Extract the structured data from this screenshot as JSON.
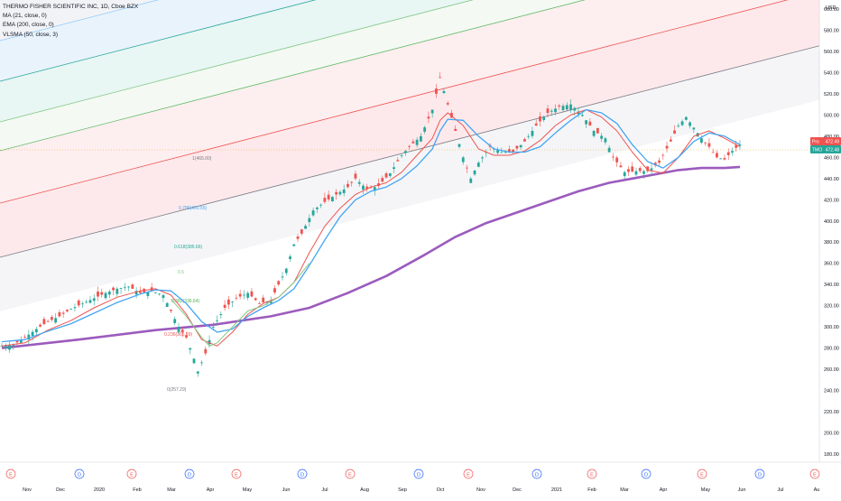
{
  "header": {
    "symbol_line": "THERMO FISHER SCIENTIFIC INC, 1D, Cboe BZX",
    "indicators": [
      "MA (21, close, 0)",
      "EMA (200, close, 0)",
      "VLSMA (50, close, 3)"
    ]
  },
  "price_axis": {
    "currency": "USD",
    "ticks": [
      "600.00",
      "580.00",
      "560.00",
      "540.00",
      "520.00",
      "500.00",
      "480.00",
      "460.00",
      "440.00",
      "420.00",
      "400.00",
      "380.00",
      "360.00",
      "340.00",
      "320.00",
      "300.00",
      "280.00",
      "260.00",
      "240.00",
      "220.00",
      "200.00",
      "180.00"
    ]
  },
  "time_axis": {
    "labels": [
      "Nov",
      "Dec",
      "2020",
      "Feb",
      "Mar",
      "Apr",
      "May",
      "Jun",
      "Jul",
      "Aug",
      "Sep",
      "Oct",
      "Nov",
      "Dec",
      "2021",
      "Feb",
      "Mar",
      "Apr",
      "May",
      "Jun",
      "Jul",
      "Au"
    ]
  },
  "event_markers": [
    "E",
    "D",
    "E",
    "D",
    "E",
    "D",
    "E",
    "D",
    "E",
    "D",
    "E",
    "D",
    "E",
    "D",
    "E",
    "D",
    "E",
    "D",
    "E"
  ],
  "price_tags": [
    {
      "label": "Pro",
      "value": "472.49",
      "color": "#ef5350"
    },
    {
      "label": "TMO",
      "value": "472.48",
      "color": "#26a69a"
    }
  ],
  "fib_levels": [
    {
      "label": "1(465.00)",
      "color": "#787b86"
    },
    {
      "label": "0.786(420.55)",
      "color": "#42a5f5"
    },
    {
      "label": "0.618(385.66)",
      "color": "#26a69a"
    },
    {
      "label": "0.5",
      "color": "#81c784"
    },
    {
      "label": "0.382(336.64)",
      "color": "#4caf50"
    },
    {
      "label": "0.236(306.39)",
      "color": "#ef5350"
    },
    {
      "label": "0(257.29)",
      "color": "#787b86"
    }
  ],
  "chart_data": {
    "type": "line",
    "title": "THERMO FISHER SCIENTIFIC INC, 1D, Cboe BZX",
    "xlabel": "",
    "ylabel": "USD",
    "ylim": [
      180,
      600
    ],
    "x_labels": [
      "Nov",
      "Dec",
      "2020",
      "Feb",
      "Mar",
      "Apr",
      "May",
      "Jun",
      "Jul",
      "Aug",
      "Sep",
      "Oct",
      "Nov",
      "Dec",
      "2021",
      "Feb",
      "Mar",
      "Apr",
      "May",
      "Jun",
      "Jul",
      "Au"
    ],
    "price_path": [
      [
        0,
        282
      ],
      [
        3,
        283
      ],
      [
        6,
        290
      ],
      [
        9,
        298
      ],
      [
        12,
        305
      ],
      [
        15,
        310
      ],
      [
        18,
        317
      ],
      [
        21,
        322
      ],
      [
        24,
        327
      ],
      [
        27,
        332
      ],
      [
        30,
        336
      ],
      [
        33,
        338
      ],
      [
        36,
        332
      ],
      [
        39,
        334
      ],
      [
        42,
        330
      ],
      [
        44,
        315
      ],
      [
        46,
        300
      ],
      [
        48,
        290
      ],
      [
        50,
        270
      ],
      [
        51,
        258
      ],
      [
        53,
        275
      ],
      [
        55,
        300
      ],
      [
        58,
        318
      ],
      [
        61,
        327
      ],
      [
        64,
        332
      ],
      [
        67,
        322
      ],
      [
        70,
        325
      ],
      [
        72,
        340
      ],
      [
        74,
        355
      ],
      [
        76,
        378
      ],
      [
        78,
        388
      ],
      [
        81,
        410
      ],
      [
        84,
        418
      ],
      [
        87,
        425
      ],
      [
        90,
        432
      ],
      [
        92,
        440
      ],
      [
        95,
        430
      ],
      [
        98,
        433
      ],
      [
        101,
        445
      ],
      [
        104,
        462
      ],
      [
        106,
        470
      ],
      [
        109,
        480
      ],
      [
        112,
        505
      ],
      [
        114,
        535
      ],
      [
        116,
        510
      ],
      [
        118,
        485
      ],
      [
        120,
        460
      ],
      [
        122,
        440
      ],
      [
        124,
        455
      ],
      [
        127,
        470
      ],
      [
        130,
        465
      ],
      [
        133,
        465
      ],
      [
        136,
        475
      ],
      [
        139,
        490
      ],
      [
        142,
        502
      ],
      [
        145,
        508
      ],
      [
        148,
        510
      ],
      [
        151,
        500
      ],
      [
        154,
        485
      ],
      [
        157,
        478
      ],
      [
        159,
        460
      ],
      [
        162,
        446
      ],
      [
        165,
        447
      ],
      [
        168,
        447
      ],
      [
        171,
        455
      ],
      [
        174,
        475
      ],
      [
        176,
        490
      ],
      [
        178,
        498
      ],
      [
        180,
        488
      ],
      [
        182,
        478
      ],
      [
        184,
        470
      ],
      [
        186,
        460
      ],
      [
        188,
        458
      ],
      [
        190,
        466
      ],
      [
        192,
        472
      ]
    ],
    "series": [
      {
        "name": "MA (21, close, 0)",
        "color": "#ef5350",
        "values": [
          [
            0,
            282
          ],
          [
            6,
            285
          ],
          [
            12,
            297
          ],
          [
            18,
            306
          ],
          [
            24,
            318
          ],
          [
            30,
            328
          ],
          [
            36,
            334
          ],
          [
            40,
            336
          ],
          [
            44,
            330
          ],
          [
            48,
            312
          ],
          [
            52,
            288
          ],
          [
            56,
            282
          ],
          [
            60,
            295
          ],
          [
            64,
            312
          ],
          [
            68,
            322
          ],
          [
            72,
            328
          ],
          [
            76,
            342
          ],
          [
            80,
            370
          ],
          [
            84,
            395
          ],
          [
            88,
            412
          ],
          [
            92,
            425
          ],
          [
            96,
            432
          ],
          [
            100,
            436
          ],
          [
            104,
            446
          ],
          [
            108,
            462
          ],
          [
            112,
            478
          ],
          [
            114,
            495
          ],
          [
            116,
            502
          ],
          [
            120,
            490
          ],
          [
            124,
            468
          ],
          [
            128,
            462
          ],
          [
            132,
            462
          ],
          [
            136,
            466
          ],
          [
            140,
            476
          ],
          [
            144,
            490
          ],
          [
            148,
            500
          ],
          [
            152,
            505
          ],
          [
            156,
            498
          ],
          [
            160,
            485
          ],
          [
            164,
            465
          ],
          [
            168,
            448
          ],
          [
            172,
            445
          ],
          [
            176,
            460
          ],
          [
            180,
            480
          ],
          [
            184,
            485
          ],
          [
            188,
            478
          ],
          [
            192,
            470
          ]
        ]
      },
      {
        "name": "EMA (200, close, 0)",
        "color": "#2962ff",
        "values": []
      },
      {
        "name": "VLSMA (50, close, 3)",
        "color": "#4caf50",
        "values": [
          [
            44,
            326
          ],
          [
            48,
            310
          ],
          [
            52,
            290
          ],
          [
            54,
            282
          ],
          [
            56,
            285
          ],
          [
            60,
            300
          ],
          [
            64,
            315
          ],
          [
            68,
            320
          ],
          [
            72,
            328
          ],
          [
            76,
            342
          ],
          [
            80,
            360
          ]
        ]
      }
    ],
    "blue_ma": [
      [
        0,
        286
      ],
      [
        6,
        288
      ],
      [
        12,
        296
      ],
      [
        18,
        303
      ],
      [
        24,
        313
      ],
      [
        30,
        323
      ],
      [
        36,
        331
      ],
      [
        40,
        335
      ],
      [
        44,
        334
      ],
      [
        48,
        322
      ],
      [
        52,
        305
      ],
      [
        56,
        295
      ],
      [
        60,
        298
      ],
      [
        64,
        310
      ],
      [
        68,
        318
      ],
      [
        72,
        325
      ],
      [
        76,
        336
      ],
      [
        80,
        358
      ],
      [
        84,
        382
      ],
      [
        88,
        404
      ],
      [
        92,
        420
      ],
      [
        96,
        428
      ],
      [
        100,
        432
      ],
      [
        104,
        440
      ],
      [
        108,
        452
      ],
      [
        112,
        468
      ],
      [
        114,
        485
      ],
      [
        116,
        496
      ],
      [
        120,
        495
      ],
      [
        124,
        480
      ],
      [
        128,
        468
      ],
      [
        132,
        465
      ],
      [
        136,
        465
      ],
      [
        140,
        470
      ],
      [
        144,
        483
      ],
      [
        148,
        495
      ],
      [
        152,
        505
      ],
      [
        156,
        502
      ],
      [
        160,
        492
      ],
      [
        164,
        472
      ],
      [
        168,
        456
      ],
      [
        172,
        450
      ],
      [
        176,
        460
      ],
      [
        180,
        475
      ],
      [
        184,
        483
      ],
      [
        188,
        480
      ],
      [
        192,
        472
      ]
    ],
    "purple_trend": [
      [
        0,
        280
      ],
      [
        20,
        288
      ],
      [
        40,
        297
      ],
      [
        55,
        302
      ],
      [
        70,
        310
      ],
      [
        80,
        318
      ],
      [
        90,
        332
      ],
      [
        100,
        348
      ],
      [
        110,
        368
      ],
      [
        118,
        385
      ],
      [
        126,
        398
      ],
      [
        134,
        408
      ],
      [
        142,
        418
      ],
      [
        150,
        428
      ],
      [
        158,
        436
      ],
      [
        164,
        440
      ],
      [
        170,
        444
      ],
      [
        176,
        448
      ],
      [
        182,
        450
      ],
      [
        188,
        450
      ],
      [
        192,
        451
      ]
    ]
  }
}
